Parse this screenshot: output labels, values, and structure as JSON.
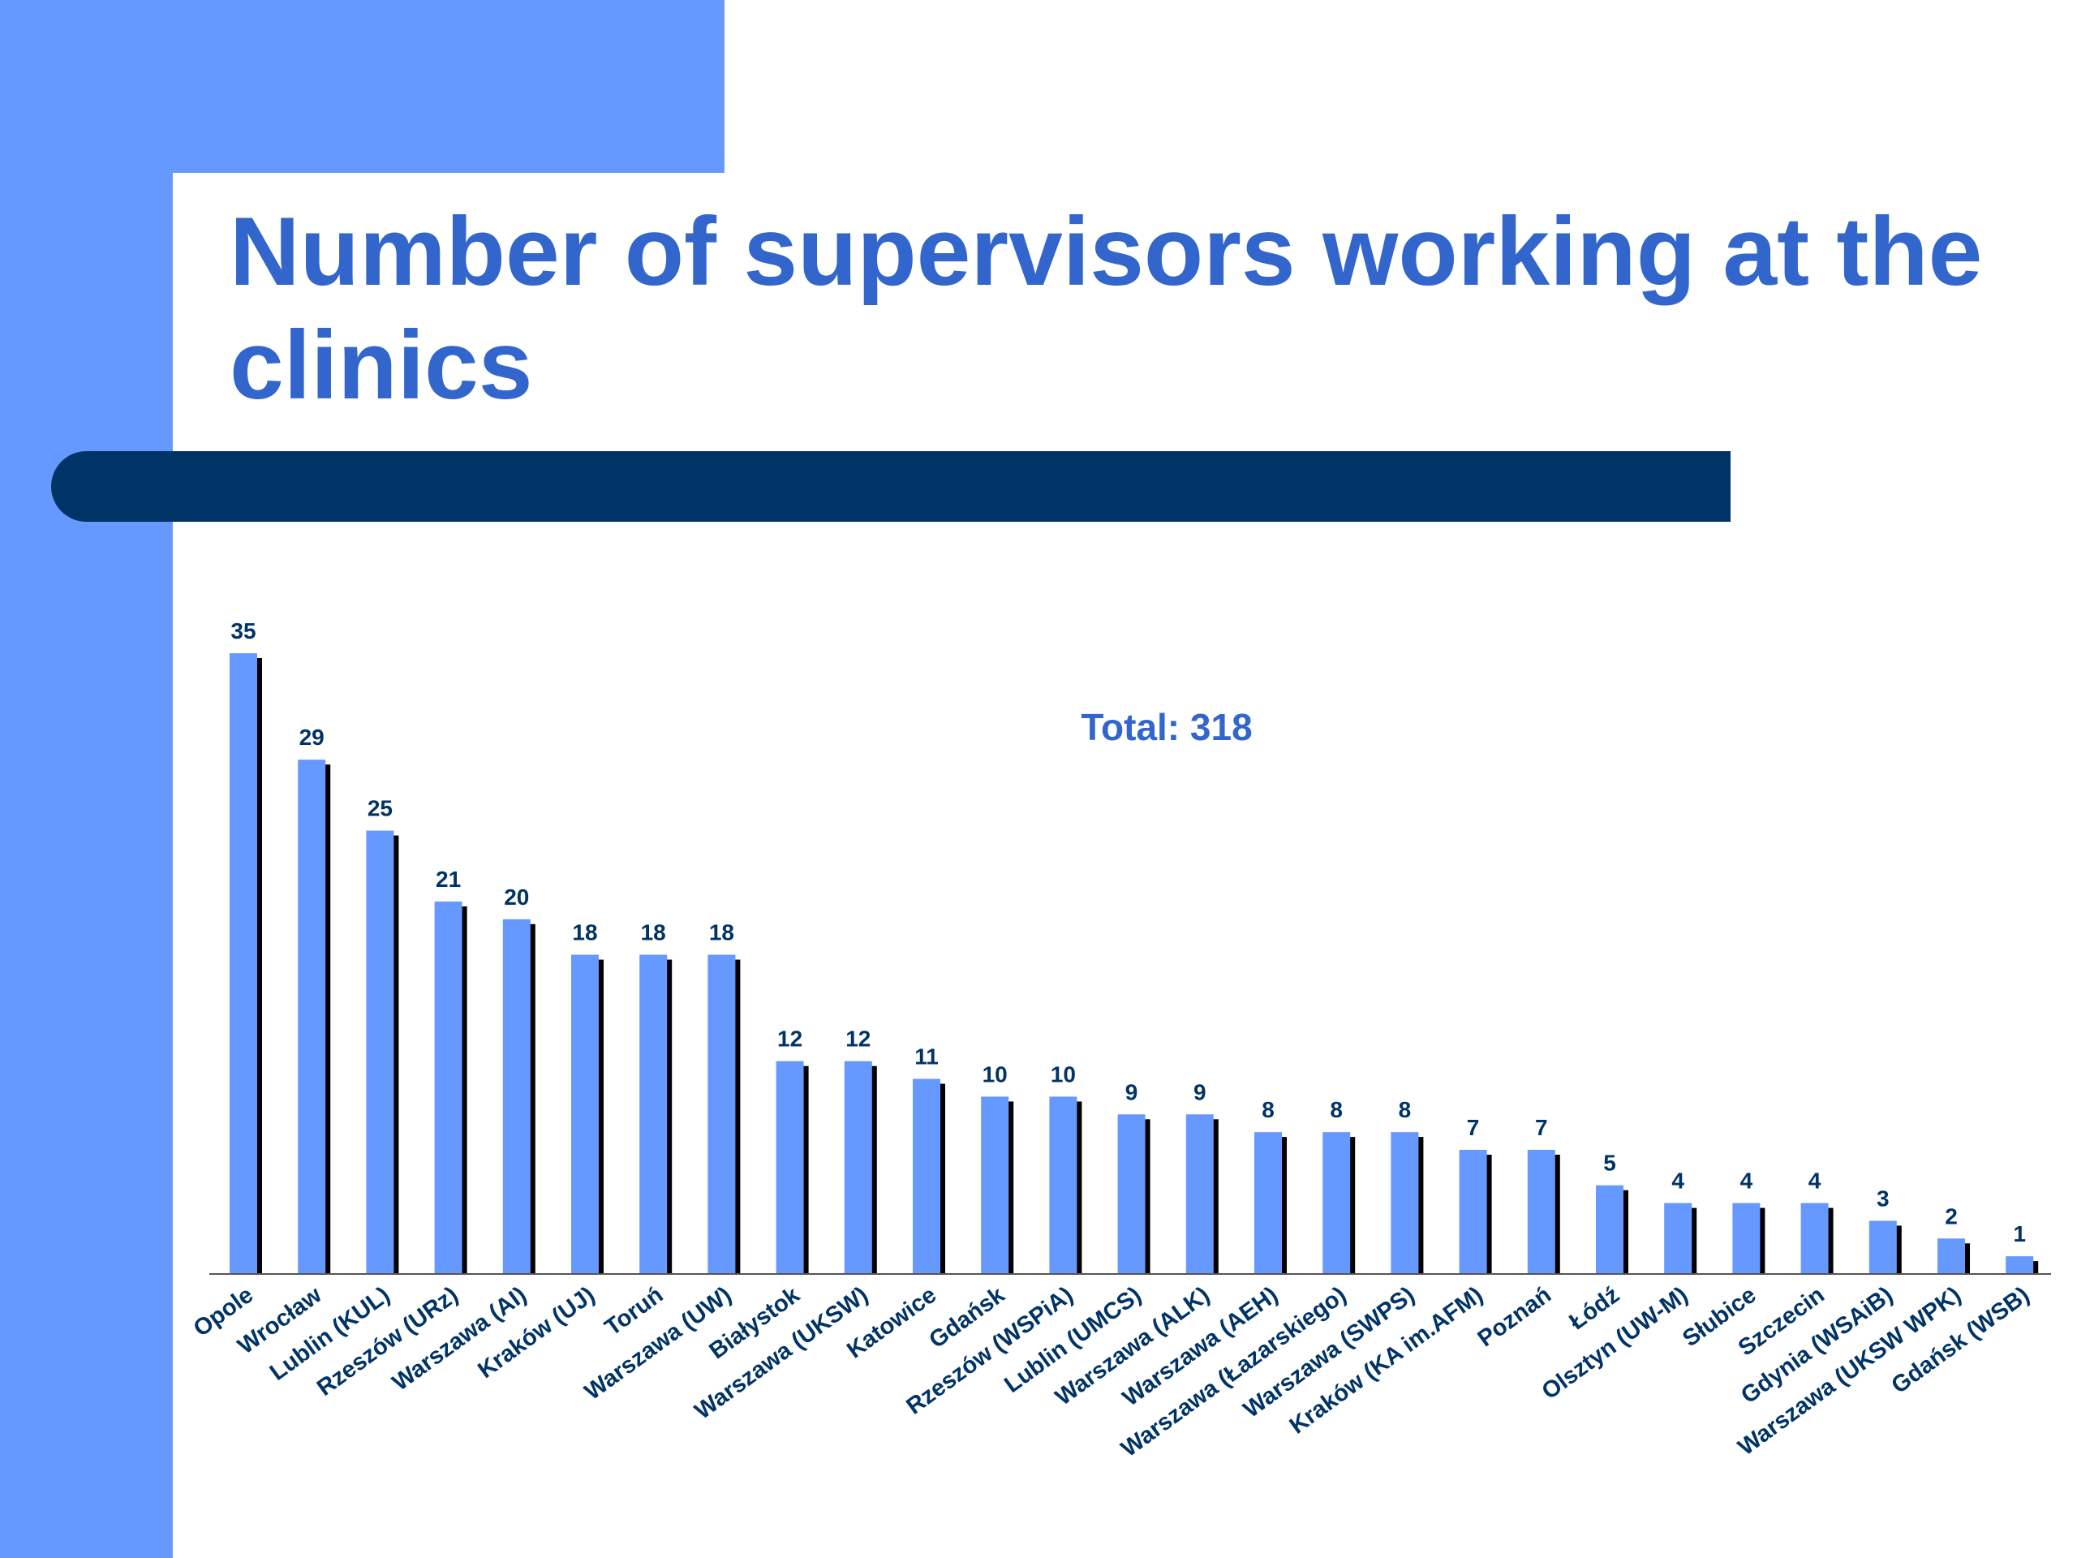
{
  "slide": {
    "title": "Number of supervisors working at the clinics"
  },
  "colors": {
    "stripe": "#6699ff",
    "title": "#3366cc",
    "title_bar": "#003366",
    "bar": "#6699ff",
    "bar_shadow": "#000000",
    "value_label": "#003366",
    "category_label": "#003366",
    "total_label": "#3366cc"
  },
  "chart_data": {
    "type": "bar",
    "title": "",
    "xlabel": "",
    "ylabel": "",
    "ylim": [
      0,
      35
    ],
    "grid": false,
    "annotation": "Total: 318",
    "categories": [
      "Opole",
      "Wrocław",
      "Lublin (KUL)",
      "Rzeszów (URz)",
      "Warszawa (AI)",
      "Kraków (UJ)",
      "Toruń",
      "Warszawa (UW)",
      "Białystok",
      "Warszawa (UKSW)",
      "Katowice",
      "Gdańsk",
      "Rzeszów (WSPiA)",
      "Lublin (UMCS)",
      "Warszawa (ALK)",
      "Warszawa (AEH)",
      "Warszawa (Łazarskiego)",
      "Warszawa (SWPS)",
      "Kraków (KA im.AFM)",
      "Poznań",
      "Łódź",
      "Olsztyn (UW-M)",
      "Słubice",
      "Szczecin",
      "Gdynia (WSAiB)",
      "Warszawa (UKSW WPK)",
      "Gdańsk (WSB)"
    ],
    "values": [
      35,
      29,
      25,
      21,
      20,
      18,
      18,
      18,
      12,
      12,
      11,
      10,
      10,
      9,
      9,
      8,
      8,
      8,
      7,
      7,
      5,
      4,
      4,
      4,
      3,
      2,
      1
    ],
    "value_labels": [
      "35",
      "29",
      "25",
      "21",
      "20",
      "18",
      "18",
      "18",
      "12",
      "12",
      "11",
      "10",
      "10",
      "9",
      "9",
      "8",
      "8",
      "8",
      "7",
      "7",
      "5",
      "4",
      "4",
      "4",
      "3",
      "2",
      "1"
    ]
  }
}
